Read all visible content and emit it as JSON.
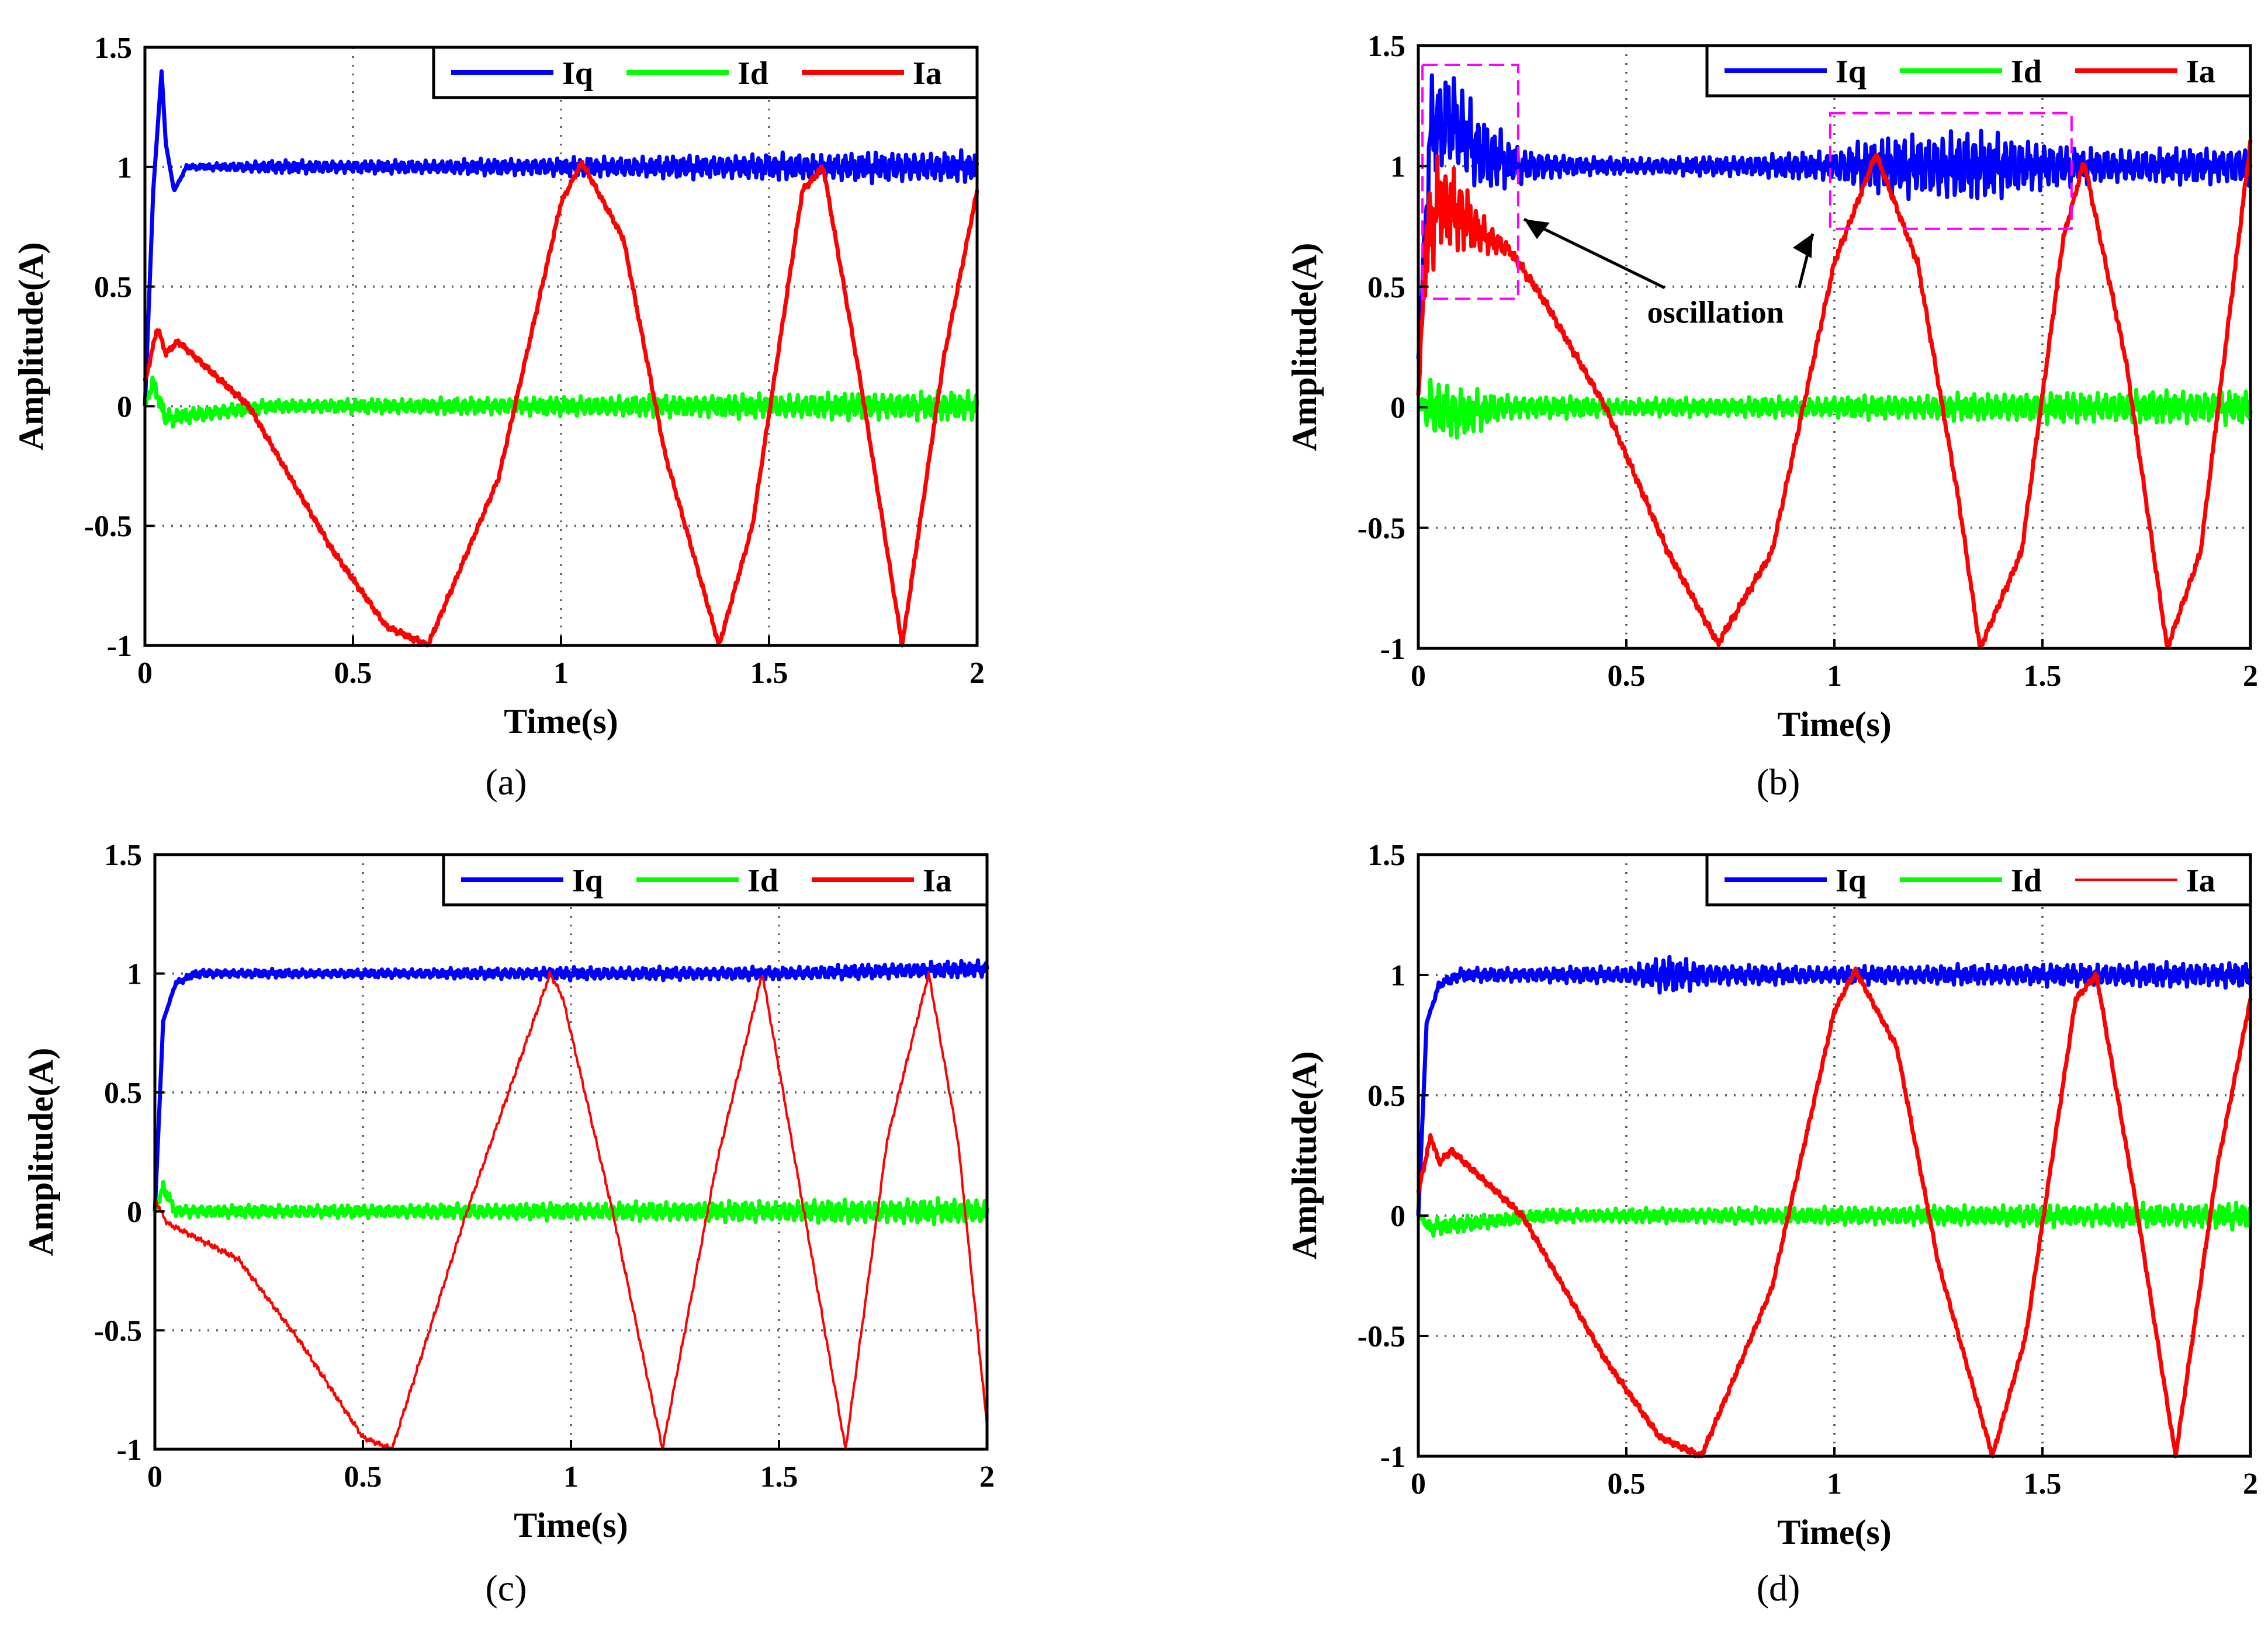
{
  "figure": {
    "panels": [
      "(a)",
      "(b)",
      "(c)",
      "(d)"
    ]
  },
  "chart_data": [
    {
      "id": "a",
      "caption": "(a)",
      "type": "line",
      "xlabel": "Time(s)",
      "ylabel": "Amplitude(A)",
      "xlim": [
        0,
        2
      ],
      "ylim": [
        -1,
        1.5
      ],
      "xticks": [
        "0",
        "0.5",
        "1",
        "1.5",
        "2"
      ],
      "yticks": [
        "-1",
        "-0.5",
        "0",
        "0.5",
        "1",
        "1.5"
      ],
      "grid": true,
      "legend": "top-right",
      "series": [
        {
          "name": "Iq",
          "color": "#0000ff",
          "x": [
            0,
            0.02,
            0.04,
            0.05,
            0.07,
            0.1,
            0.3,
            0.6,
            0.9,
            1.2,
            1.5,
            1.8,
            2.0
          ],
          "y": [
            0,
            0.9,
            1.4,
            1.1,
            0.9,
            1.0,
            1.0,
            1.0,
            1.0,
            1.0,
            1.0,
            1.0,
            1.0
          ],
          "ripple": [
            0,
            0,
            0,
            0,
            0,
            0.01,
            0.03,
            0.03,
            0.04,
            0.05,
            0.06,
            0.07,
            0.07
          ]
        },
        {
          "name": "Id",
          "color": "#00ff00",
          "x": [
            0,
            0.02,
            0.05,
            0.3,
            0.8,
            1.2,
            1.6,
            2.0
          ],
          "y": [
            0,
            0.1,
            -0.05,
            0,
            0,
            0,
            0,
            0
          ],
          "ripple": [
            0,
            0.04,
            0.04,
            0.03,
            0.04,
            0.05,
            0.06,
            0.07
          ]
        },
        {
          "name": "Ia",
          "color": "#ff0000",
          "x": [
            0,
            0.03,
            0.05,
            0.08,
            0.25,
            0.45,
            0.58,
            0.68,
            0.85,
            1.0,
            1.05,
            1.15,
            1.25,
            1.38,
            1.46,
            1.58,
            1.63,
            1.72,
            1.82,
            1.92,
            2.0
          ],
          "y": [
            0.1,
            0.33,
            0.22,
            0.27,
            0.0,
            -0.6,
            -0.92,
            -1.0,
            -0.3,
            0.85,
            1.02,
            0.7,
            -0.2,
            -1.0,
            -0.5,
            0.9,
            1.0,
            0.1,
            -1.0,
            0.2,
            0.9
          ],
          "ripple": 0.015
        }
      ]
    },
    {
      "id": "b",
      "caption": "(b)",
      "type": "line",
      "xlabel": "Time(s)",
      "ylabel": "Amplitude(A)",
      "xlim": [
        0,
        2
      ],
      "ylim": [
        -1,
        1.5
      ],
      "xticks": [
        "0",
        "0.5",
        "1",
        "1.5",
        "2"
      ],
      "yticks": [
        "-1",
        "-0.5",
        "0",
        "0.5",
        "1",
        "1.5"
      ],
      "grid": true,
      "legend": "top-right",
      "annotation": "oscillation",
      "highlight_boxes": [
        {
          "x": [
            0.01,
            0.24
          ],
          "y": [
            0.45,
            1.42
          ]
        },
        {
          "x": [
            0.99,
            1.57
          ],
          "y": [
            0.74,
            1.22
          ]
        }
      ],
      "series": [
        {
          "name": "Iq",
          "color": "#0000ff",
          "x": [
            0,
            0.03,
            0.08,
            0.15,
            0.25,
            0.4,
            0.6,
            0.8,
            1.0,
            1.05,
            1.3,
            1.5,
            1.6,
            1.8,
            2.0
          ],
          "y": [
            0.2,
            1.15,
            1.2,
            1.05,
            1.0,
            1.0,
            1.0,
            1.0,
            1.0,
            1.0,
            1.0,
            1.0,
            1.0,
            1.0,
            1.0
          ],
          "ripple": [
            0,
            0.25,
            0.25,
            0.18,
            0.08,
            0.04,
            0.04,
            0.05,
            0.07,
            0.12,
            0.17,
            0.12,
            0.08,
            0.08,
            0.09
          ]
        },
        {
          "name": "Id",
          "color": "#00ff00",
          "x": [
            0,
            0.03,
            0.1,
            0.2,
            0.5,
            1.0,
            1.5,
            2.0
          ],
          "y": [
            0,
            0,
            -0.03,
            0,
            0,
            0,
            0,
            0
          ],
          "ripple": [
            0,
            0.15,
            0.12,
            0.06,
            0.04,
            0.05,
            0.07,
            0.08
          ]
        },
        {
          "name": "Ia",
          "color": "#ff0000",
          "x": [
            0,
            0.02,
            0.05,
            0.1,
            0.15,
            0.22,
            0.3,
            0.45,
            0.6,
            0.72,
            0.85,
            1.0,
            1.1,
            1.2,
            1.3,
            1.35,
            1.45,
            1.55,
            1.6,
            1.7,
            1.8,
            1.88,
            2.0
          ],
          "y": [
            0.05,
            0.7,
            0.85,
            0.8,
            0.72,
            0.65,
            0.45,
            0.0,
            -0.6,
            -0.98,
            -0.6,
            0.6,
            1.05,
            0.6,
            -0.4,
            -1.0,
            -0.6,
            0.7,
            1.02,
            0.2,
            -1.0,
            -0.6,
            1.1
          ],
          "ripple": [
            0,
            0.25,
            0.22,
            0.18,
            0.1,
            0.03,
            0.02,
            0.02,
            0.02,
            0.02,
            0.02,
            0.02,
            0.02,
            0.02,
            0.02,
            0.02,
            0.02,
            0.02,
            0.02,
            0.02,
            0.02,
            0.02,
            0.02
          ]
        }
      ]
    },
    {
      "id": "c",
      "caption": "(c)",
      "type": "line",
      "xlabel": "Time(s)",
      "ylabel": "Amplitude(A)",
      "xlim": [
        0,
        2
      ],
      "ylim": [
        -1,
        1.5
      ],
      "xticks": [
        "0",
        "0.5",
        "1",
        "1.5",
        "2"
      ],
      "yticks": [
        "-1",
        "-0.5",
        "0",
        "0.5",
        "1",
        "1.5"
      ],
      "grid": true,
      "legend": "top-right",
      "series": [
        {
          "name": "Iq",
          "color": "#0000ff",
          "x": [
            0,
            0.02,
            0.05,
            0.1,
            0.5,
            1.0,
            1.5,
            2.0
          ],
          "y": [
            0,
            0.8,
            0.96,
            1.0,
            1.0,
            1.0,
            1.0,
            1.02
          ],
          "ripple": [
            0,
            0,
            0.01,
            0.02,
            0.02,
            0.03,
            0.03,
            0.04
          ]
        },
        {
          "name": "Id",
          "color": "#00ff00",
          "x": [
            0,
            0.02,
            0.05,
            0.5,
            1.0,
            1.5,
            2.0
          ],
          "y": [
            0,
            0.1,
            0.0,
            0.0,
            0.0,
            0.0,
            0.0
          ],
          "ripple": [
            0,
            0.03,
            0.03,
            0.03,
            0.04,
            0.05,
            0.06
          ]
        },
        {
          "name": "Ia",
          "color": "#ff0000",
          "x": [
            0,
            0.03,
            0.2,
            0.35,
            0.5,
            0.57,
            0.75,
            0.95,
            0.98,
            1.1,
            1.22,
            1.35,
            1.46,
            1.56,
            1.66,
            1.76,
            1.86,
            1.93,
            2.0
          ],
          "y": [
            0.05,
            -0.05,
            -0.2,
            -0.55,
            -0.95,
            -1.0,
            0.0,
            1.0,
            0.9,
            0.0,
            -1.0,
            0.2,
            1.0,
            0.0,
            -1.0,
            0.3,
            1.0,
            0.3,
            -0.9
          ],
          "ripple": 0.015
        }
      ]
    },
    {
      "id": "d",
      "caption": "(d)",
      "type": "line",
      "xlabel": "Time(s)",
      "ylabel": "Amplitude(A)",
      "xlim": [
        0,
        2
      ],
      "ylim": [
        -1,
        1.5
      ],
      "xticks": [
        "0",
        "0.5",
        "1",
        "1.5",
        "2"
      ],
      "yticks": [
        "-1",
        "-0.5",
        "0",
        "0.5",
        "1",
        "1.5"
      ],
      "grid": true,
      "legend": "top-right",
      "series": [
        {
          "name": "Iq",
          "color": "#0000ff",
          "x": [
            0,
            0.02,
            0.05,
            0.1,
            0.5,
            0.6,
            0.7,
            1.0,
            1.5,
            2.0
          ],
          "y": [
            0,
            0.8,
            0.96,
            1.0,
            1.0,
            1.0,
            1.0,
            1.0,
            1.0,
            1.0
          ],
          "ripple": [
            0,
            0,
            0.02,
            0.03,
            0.04,
            0.09,
            0.05,
            0.04,
            0.05,
            0.06
          ]
        },
        {
          "name": "Id",
          "color": "#00ff00",
          "x": [
            0,
            0.03,
            0.3,
            1.0,
            1.5,
            2.0
          ],
          "y": [
            0,
            -0.05,
            0,
            0,
            0,
            0
          ],
          "ripple": [
            0,
            0.04,
            0.03,
            0.04,
            0.05,
            0.06
          ]
        },
        {
          "name": "Ia",
          "color": "#ff0000",
          "x": [
            0,
            0.03,
            0.05,
            0.08,
            0.25,
            0.45,
            0.58,
            0.68,
            0.85,
            1.0,
            1.05,
            1.15,
            1.25,
            1.38,
            1.46,
            1.58,
            1.63,
            1.72,
            1.82,
            1.92,
            2.0
          ],
          "y": [
            0.1,
            0.33,
            0.22,
            0.27,
            0.0,
            -0.6,
            -0.92,
            -1.0,
            -0.3,
            0.85,
            1.02,
            0.7,
            -0.2,
            -1.0,
            -0.5,
            0.9,
            1.0,
            0.1,
            -1.0,
            0.2,
            0.9
          ],
          "ripple": 0.015
        }
      ]
    }
  ]
}
